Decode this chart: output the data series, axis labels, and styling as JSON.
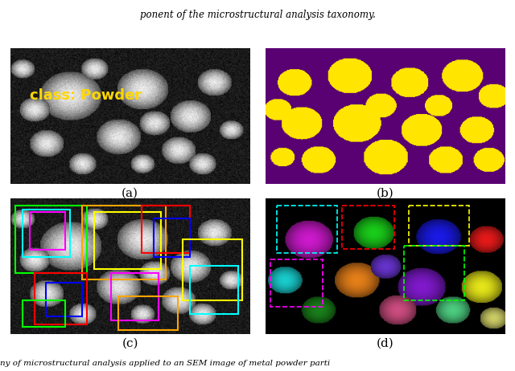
{
  "fig_width": 6.4,
  "fig_height": 4.62,
  "dpi": 100,
  "top_text": "ponent of the microstructural analysis taxonomy.",
  "bottom_text": "ny of microstructural analysis applied to an SEM image of metal powder parti",
  "panel_labels": [
    "(a)",
    "(b)",
    "(c)",
    "(d)"
  ],
  "class_label": "class: Powder",
  "class_label_color": "#FFD700",
  "class_label_fontsize": 13,
  "panel_label_fontsize": 11,
  "bg_color": "#ffffff"
}
